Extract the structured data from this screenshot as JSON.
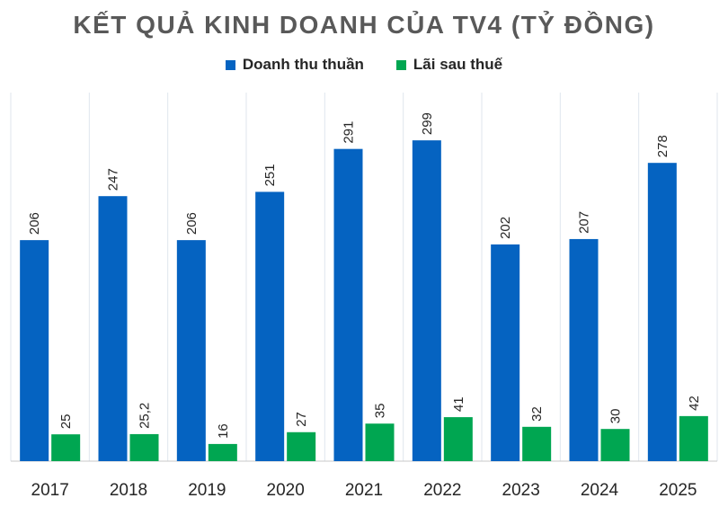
{
  "chart_data": {
    "type": "bar",
    "title": "KẾT QUẢ KINH DOANH CỦA TV4 (TỶ ĐỒNG)",
    "xlabel": "",
    "ylabel": "",
    "categories": [
      "2017",
      "2018",
      "2019",
      "2020",
      "2021",
      "2022",
      "2023",
      "2024",
      "2025"
    ],
    "series": [
      {
        "name": "Doanh thu thuần",
        "color": "#0563c1",
        "values": [
          206,
          247,
          206,
          251,
          291,
          299,
          202,
          207,
          278
        ],
        "labels": [
          "206",
          "247",
          "206",
          "251",
          "291",
          "299",
          "202",
          "207",
          "278"
        ]
      },
      {
        "name": "Lãi sau thuế",
        "color": "#00a651",
        "values": [
          25,
          25.2,
          16,
          27,
          35,
          41,
          32,
          30,
          42
        ],
        "labels": [
          "25",
          "25,2",
          "16",
          "27",
          "35",
          "41",
          "32",
          "30",
          "42"
        ]
      }
    ],
    "ylim": [
      0,
      310
    ],
    "legend_position": "top",
    "grid": "vertical-only",
    "data_labels": "rotated-vertical"
  }
}
